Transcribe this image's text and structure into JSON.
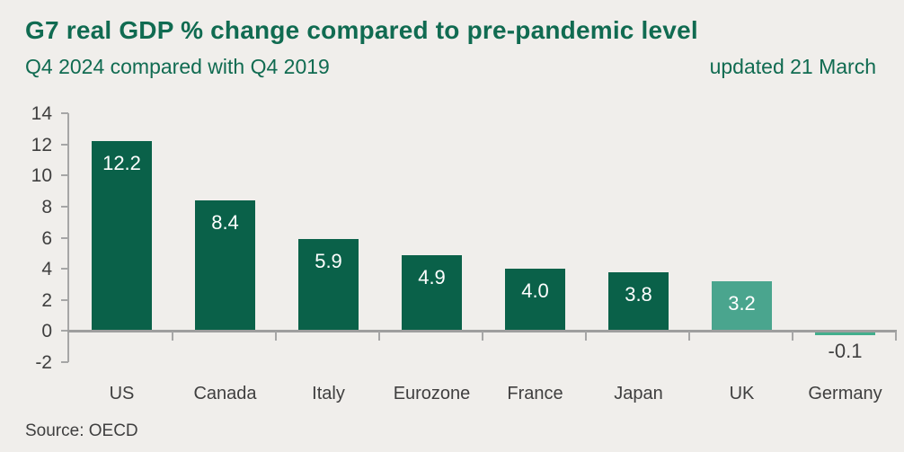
{
  "header": {
    "title": "G7 real GDP % change compared to pre-pandemic level",
    "subtitle": "Q4 2024 compared with Q4 2019",
    "updated": "updated 21 March"
  },
  "footer": {
    "source": "Source: OECD"
  },
  "colors": {
    "background": "#f0eeeb",
    "heading_green": "#106b51",
    "bar_dark": "#0a6149",
    "bar_highlight": "#4aa58e",
    "bar_germany": "#43ae8c",
    "axis_gray": "#a6a6a6",
    "tick_label_gray": "#3f3f3f",
    "value_label_white": "#ffffff"
  },
  "chart_data": {
    "type": "bar",
    "title": "G7 real GDP % change compared to pre-pandemic level",
    "subtitle": "Q4 2024 compared with Q4 2019",
    "categories": [
      "US",
      "Canada",
      "Italy",
      "Eurozone",
      "France",
      "Japan",
      "UK",
      "Germany"
    ],
    "values": [
      12.2,
      8.4,
      5.9,
      4.9,
      4.0,
      3.8,
      3.2,
      -0.1
    ],
    "value_labels": [
      "12.2",
      "8.4",
      "5.9",
      "4.9",
      "4.0",
      "3.8",
      "3.2",
      "-0.1"
    ],
    "bar_color_keys": [
      "dark",
      "dark",
      "dark",
      "dark",
      "dark",
      "dark",
      "highlight",
      "germany"
    ],
    "xlabel": "",
    "ylabel": "",
    "ylim": [
      -2,
      14
    ],
    "y_ticks": [
      14,
      12,
      10,
      8,
      6,
      4,
      2,
      0,
      -2
    ],
    "grid": false,
    "legend": false,
    "source": "Source: OECD"
  }
}
